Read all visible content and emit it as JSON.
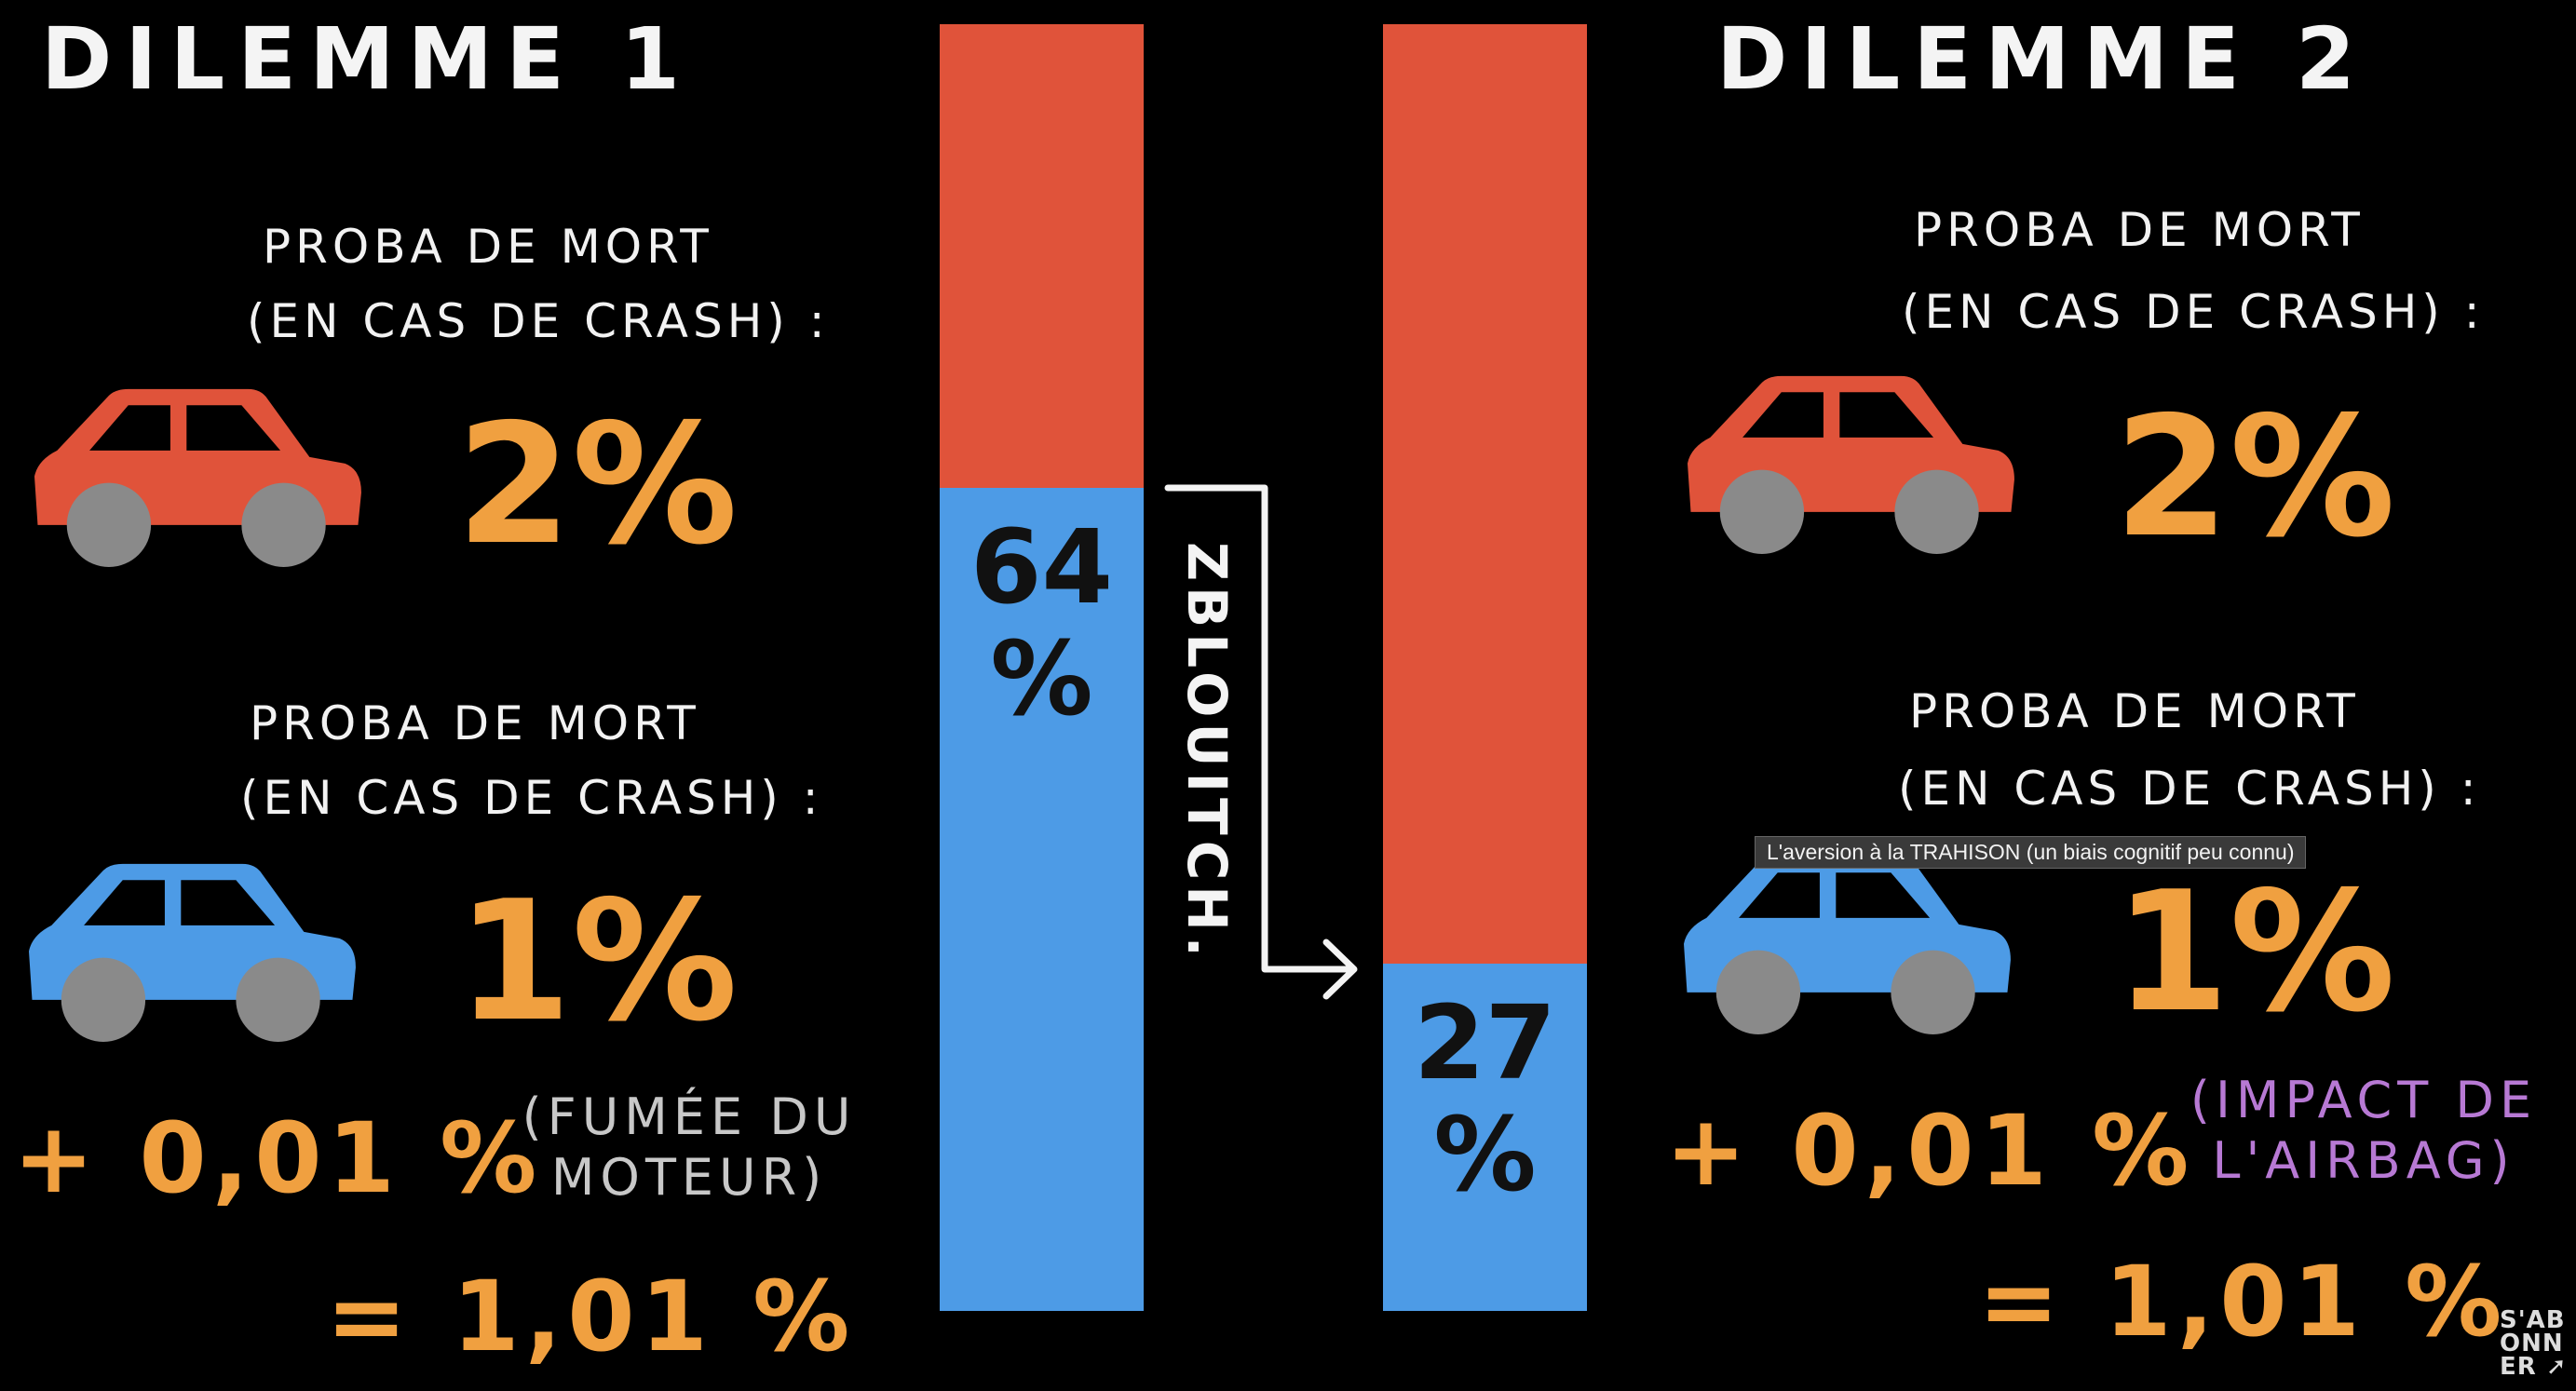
{
  "tooltip": "L'aversion à la TRAHISON (un biais cognitif peu connu)",
  "colors": {
    "red_car": "#e0533a",
    "blue_car": "#4d9be6",
    "orange_text": "#f0a040",
    "wheel": "#8a8a8a",
    "note_gray": "#c8c8c8",
    "note_purple": "#b779d4",
    "background": "#000000"
  },
  "dilemma1": {
    "title": "DILEMME 1",
    "red": {
      "label": "PROBA DE MORT",
      "sub": "(EN CAS DE CRASH) :",
      "value": "2%",
      "icon": "red-car-icon"
    },
    "blue": {
      "label": "PROBA DE MORT",
      "sub": "(EN CAS DE CRASH) :",
      "value": "1%",
      "icon": "blue-car-icon"
    },
    "extra": "+ 0,01 %",
    "note_line1": "(FUMÉE DU",
    "note_line2": "MOTEUR)",
    "total": "= 1,01 %"
  },
  "dilemma2": {
    "title": "DILEMME 2",
    "red": {
      "label": "PROBA DE MORT",
      "sub": "(EN CAS DE CRASH) :",
      "value": "2%",
      "icon": "red-car-icon"
    },
    "blue": {
      "label": "PROBA DE MORT",
      "sub": "(EN CAS DE CRASH) :",
      "value": "1%",
      "icon": "blue-car-icon"
    },
    "extra": "+ 0,01 %",
    "note_line1": "(IMPACT DE",
    "note_line2": "L'AIRBAG)",
    "total": "= 1,01 %"
  },
  "chart_data": {
    "type": "bar",
    "categories": [
      "DILEMME 1",
      "DILEMME 2"
    ],
    "values": [
      64,
      27
    ],
    "labels": [
      "64",
      "27"
    ],
    "unit": "%",
    "ylim": [
      0,
      100
    ]
  },
  "arrow_label": "ZBLOUITCH.",
  "subscribe_logo": "S'ABONNER"
}
